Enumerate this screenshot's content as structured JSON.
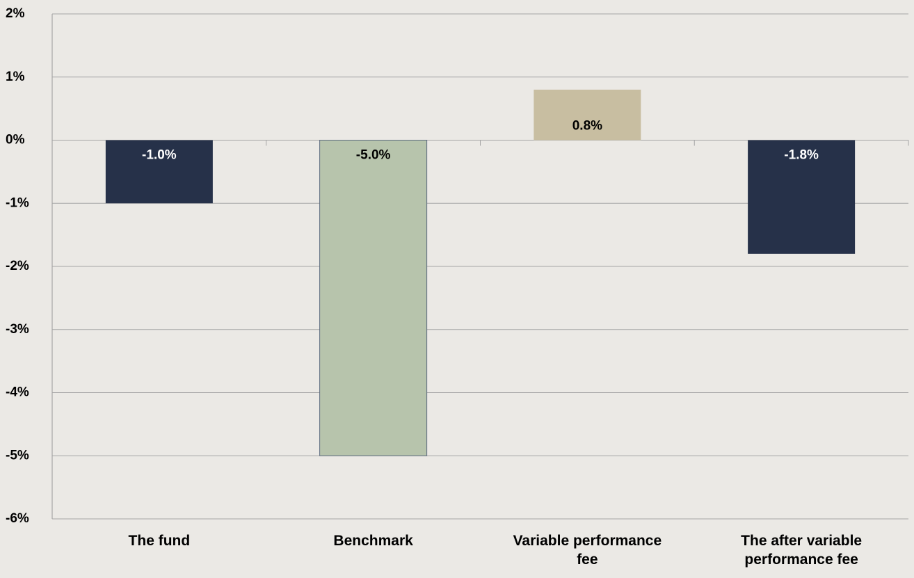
{
  "chart_data": {
    "type": "bar",
    "categories": [
      "The fund",
      "Benchmark",
      "Variable performance fee",
      "The after variable performance fee"
    ],
    "values": [
      -1.0,
      -5.0,
      0.8,
      -1.8
    ],
    "value_labels": [
      "-1.0%",
      "-5.0%",
      "0.8%",
      "-1.8%"
    ],
    "colors": [
      "#263149",
      "#b7c4ac",
      "#c8bea1",
      "#263149"
    ],
    "ylim": [
      -6,
      2
    ],
    "yticks": [
      {
        "value": 2,
        "label": "2%"
      },
      {
        "value": 1,
        "label": "1%"
      },
      {
        "value": 0,
        "label": "0%"
      },
      {
        "value": -1,
        "label": "-1%"
      },
      {
        "value": -2,
        "label": "-2%"
      },
      {
        "value": -3,
        "label": "-3%"
      },
      {
        "value": -4,
        "label": "-4%"
      },
      {
        "value": -5,
        "label": "-5%"
      },
      {
        "value": -6,
        "label": "-6%"
      }
    ],
    "grid": true
  }
}
